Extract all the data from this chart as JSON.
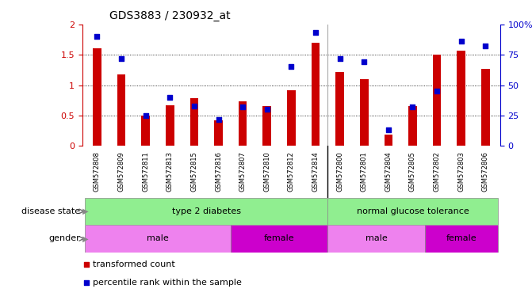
{
  "title": "GDS3883 / 230932_at",
  "samples": [
    "GSM572808",
    "GSM572809",
    "GSM572811",
    "GSM572813",
    "GSM572815",
    "GSM572816",
    "GSM572807",
    "GSM572810",
    "GSM572812",
    "GSM572814",
    "GSM572800",
    "GSM572801",
    "GSM572804",
    "GSM572805",
    "GSM572802",
    "GSM572803",
    "GSM572806"
  ],
  "red_values": [
    1.6,
    1.17,
    0.5,
    0.67,
    0.78,
    0.42,
    0.73,
    0.65,
    0.92,
    1.7,
    1.21,
    1.1,
    0.18,
    0.65,
    1.5,
    1.57,
    1.27
  ],
  "blue_values_pct": [
    90,
    72,
    25,
    40,
    33,
    22,
    32,
    30,
    65,
    93,
    72,
    69,
    13,
    32,
    45,
    86,
    82
  ],
  "ylim_left": [
    0,
    2
  ],
  "ylim_right": [
    0,
    100
  ],
  "yticks_left": [
    0,
    0.5,
    1.0,
    1.5,
    2.0
  ],
  "ytick_labels_left": [
    "0",
    "0.5",
    "1",
    "1.5",
    "2"
  ],
  "ytick_labels_right": [
    "0",
    "25",
    "50",
    "75",
    "100%"
  ],
  "color_red": "#CC0000",
  "color_blue": "#0000CC",
  "color_green_light": "#90EE90",
  "color_pink_light": "#EE82EE",
  "color_pink_dark": "#CC00CC",
  "bg_color": "#FFFFFF",
  "bar_width": 0.35,
  "t2d_count": 10,
  "male_t2d_count": 6,
  "female_t2d_count": 4,
  "male_ngt_count": 4,
  "female_ngt_count": 3
}
